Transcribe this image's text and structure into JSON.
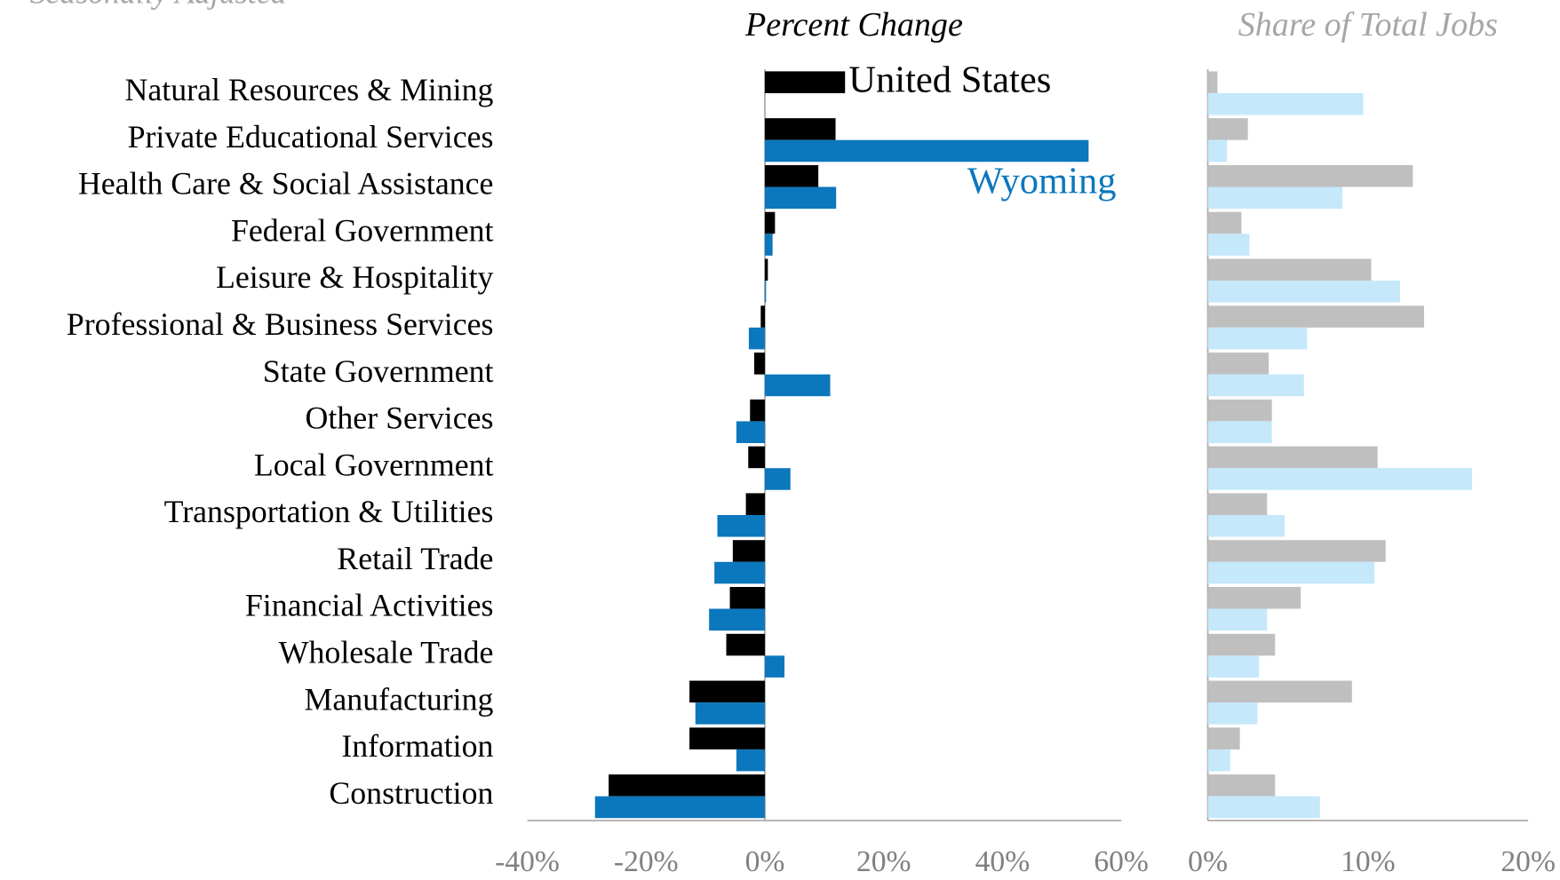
{
  "subtitle": "Seasonally Adjusted",
  "chart_data": [
    {
      "type": "barh",
      "title": "Percent Change",
      "categories": [
        "Natural Resources & Mining",
        "Private Educational Services",
        "Health Care & Social Assistance",
        "Federal Government",
        "Leisure & Hospitality",
        "Professional & Business Services",
        "State Government",
        "Other Services",
        "Local Government",
        "Transportation & Utilities",
        "Retail Trade",
        "Financial Activities",
        "Wholesale Trade",
        "Manufacturing",
        "Information",
        "Construction"
      ],
      "series": [
        {
          "name": "United States",
          "color": "#000000",
          "values": [
            13.5,
            11.9,
            9.0,
            1.7,
            0.5,
            -0.7,
            -1.8,
            -2.5,
            -2.8,
            -3.2,
            -5.4,
            -5.9,
            -6.5,
            -12.7,
            -12.7,
            -26.3
          ]
        },
        {
          "name": "Wyoming",
          "color": "#0b77bd",
          "values": [
            null,
            54.5,
            12.0,
            1.3,
            0.2,
            -2.7,
            11.0,
            -4.8,
            4.3,
            -8.0,
            -8.5,
            -9.4,
            3.3,
            -11.7,
            -4.8,
            -28.6
          ]
        }
      ],
      "xlim": [
        -40,
        60
      ],
      "xticks": [
        {
          "value": -40,
          "label": "-40%"
        },
        {
          "value": -20,
          "label": "-20%"
        },
        {
          "value": 0,
          "label": "0%"
        },
        {
          "value": 20,
          "label": "20%"
        },
        {
          "value": 40,
          "label": "40%"
        },
        {
          "value": 60,
          "label": "60%"
        }
      ]
    },
    {
      "type": "barh",
      "title": "Share of Total Jobs",
      "series": [
        {
          "color": "#bfbfbf",
          "values": [
            0.6,
            2.5,
            12.8,
            2.1,
            10.2,
            13.5,
            3.8,
            4.0,
            10.6,
            3.7,
            11.1,
            5.8,
            4.2,
            9.0,
            2.0,
            4.2
          ]
        },
        {
          "color": "#c5e8fb",
          "values": [
            9.7,
            1.2,
            8.4,
            2.6,
            12.0,
            6.2,
            6.0,
            4.0,
            16.5,
            4.8,
            10.4,
            3.7,
            3.2,
            3.1,
            1.4,
            7.0
          ]
        }
      ],
      "xlim": [
        0,
        20
      ],
      "xticks": [
        {
          "value": 0,
          "label": "0%"
        },
        {
          "value": 10,
          "label": "10%"
        },
        {
          "value": 20,
          "label": "20%"
        }
      ]
    }
  ]
}
